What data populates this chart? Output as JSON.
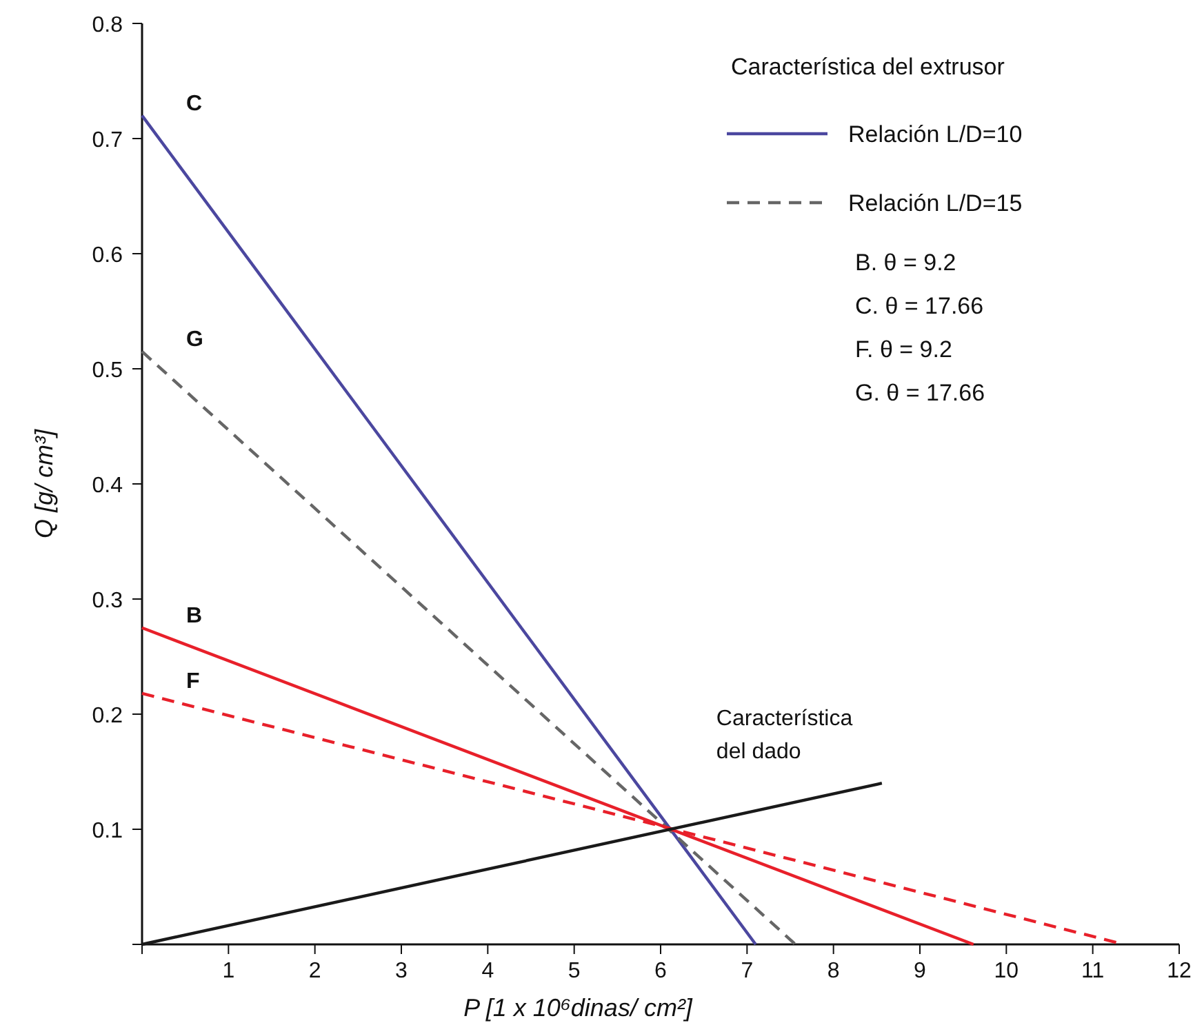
{
  "chart_data": {
    "type": "line",
    "xlabel": "P [1 x 10⁶dinas/ cm²]",
    "ylabel": "Q [g/ cm³]",
    "legend_title": "Característica del extrusor",
    "xlim": [
      0,
      12
    ],
    "xticks": [
      {
        "value": 0,
        "label": null
      },
      1,
      2,
      3,
      4,
      5,
      6,
      7,
      8,
      9,
      10,
      11,
      12
    ],
    "ylim": [
      0,
      0.8
    ],
    "yticks": [
      {
        "value": 0,
        "label": null
      },
      0.1,
      0.2,
      0.3,
      0.4,
      0.5,
      0.6,
      0.7,
      0.8
    ],
    "grid": false,
    "marker": "none",
    "series": [
      {
        "name": "C",
        "color": "#4b479f",
        "line_style": "solid",
        "x": [
          0,
          7.1
        ],
        "values": [
          0.72,
          0
        ]
      },
      {
        "name": "G",
        "color": "#666666",
        "line_style": "dashed",
        "x": [
          0,
          7.56
        ],
        "values": [
          0.515,
          0
        ]
      },
      {
        "name": "B",
        "color": "#e8202a",
        "line_style": "solid",
        "x": [
          0,
          9.62
        ],
        "values": [
          0.275,
          0
        ]
      },
      {
        "name": "F",
        "color": "#e8202a",
        "line_style": "dashed",
        "x": [
          0,
          11.36
        ],
        "values": [
          0.218,
          0
        ]
      },
      {
        "name": "Característica del dado",
        "color": "#1a1a1a",
        "line_style": "solid",
        "x": [
          0,
          8.56
        ],
        "values": [
          0,
          0.14
        ]
      }
    ],
    "annotations": [
      "Relación L/D=10",
      "Relación L/D=15",
      "B. θ = 9.2",
      "C. θ = 17.66",
      "F. θ = 9.2",
      "G. θ = 17.66"
    ]
  }
}
